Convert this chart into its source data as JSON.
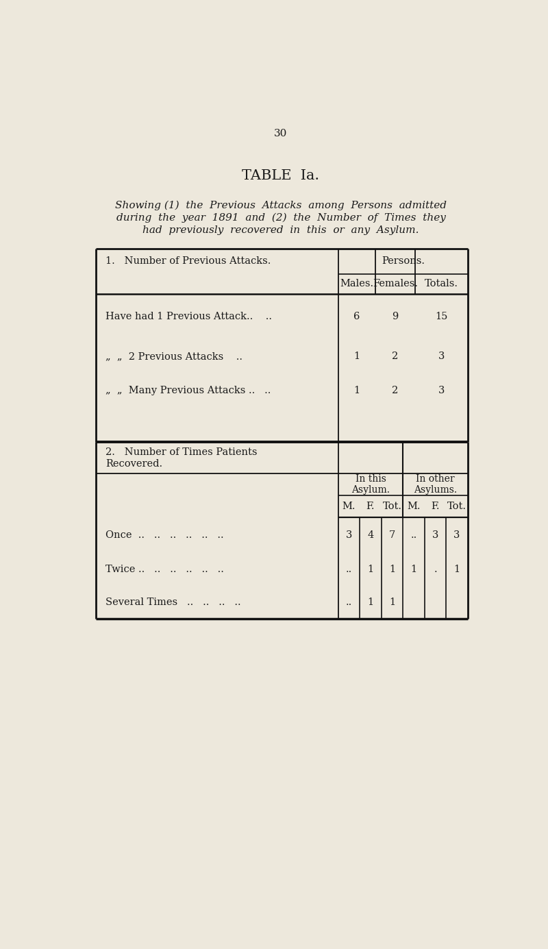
{
  "bg_color": "#ede8dc",
  "page_number": "30",
  "title": "TABLE  Ia.",
  "subtitle_line1": "Showing (1)  the  Previous  Attacks  among  Persons  admitted",
  "subtitle_line2": "during  the  year  1891  and  (2)  the  Number  of  Times  they",
  "subtitle_line3": "had  previously  recovered  in  this  or  any  Asylum.",
  "section1_header": "1.   Number of Previous Attacks.",
  "persons_header": "Persons.",
  "males_header": "Males.",
  "females_header": "Females.",
  "totals_header": "Totals.",
  "row1_label": "Have had 1 Previous Attack..    ..",
  "row2_label": "„  „  2 Previous Attacks    ..",
  "row3_label": "„  „  Many Previous Attacks ..   ..",
  "row1_males": "6",
  "row1_females": "9",
  "row1_totals": "15",
  "row2_males": "1",
  "row2_females": "2",
  "row2_totals": "3",
  "row3_males": "1",
  "row3_females": "2",
  "row3_totals": "3",
  "section2_header1": "2.   Number of Times Patients",
  "section2_header2": "Recovered.",
  "in_this": "In this",
  "asylum1": "Asylum.",
  "in_other": "In other",
  "asylums2": "Asylums.",
  "sub_headers": [
    "M.",
    "F.",
    "Tot.",
    "M.",
    "F.",
    "Tot."
  ],
  "once_label": "Once  ..   ..   ..   ..   ..   ..",
  "twice_label": "Twice ..   ..   ..   ..   ..   ..",
  "sev_label": "Several Times   ..   ..   ..   ..",
  "once_vals": [
    "3",
    "4",
    "7",
    "..",
    "3",
    "3"
  ],
  "twice_vals": [
    "..",
    "1",
    "1",
    "1",
    ".",
    "1"
  ],
  "sev_vals": [
    "..",
    "1",
    "1",
    "",
    "",
    ""
  ],
  "line_color": "#111111",
  "text_color": "#1a1a1a"
}
